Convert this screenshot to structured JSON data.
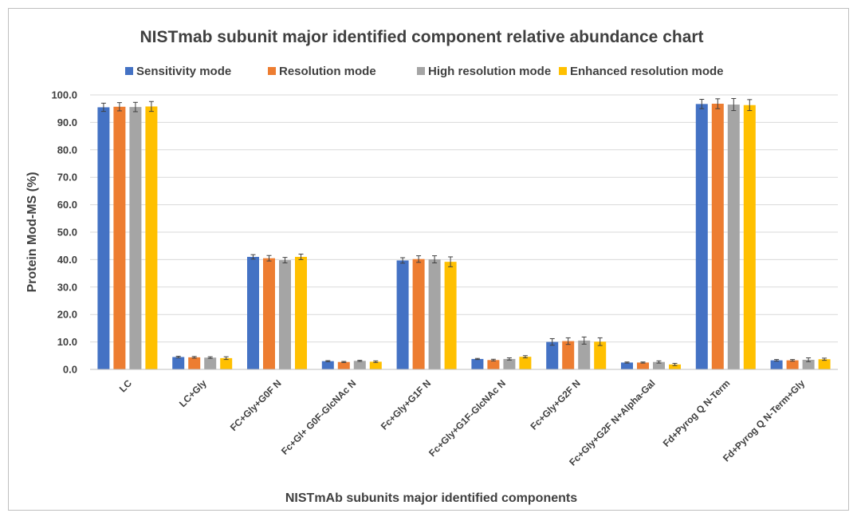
{
  "chart_data": {
    "type": "bar",
    "title": "NISTmab subunit major identified component relative abundance chart",
    "xlabel": "NISTmAb subunits major identified components",
    "ylabel": "Protein Mod-MS (%)",
    "ylim": [
      0,
      100
    ],
    "yticks": [
      "0.0",
      "10.0",
      "20.0",
      "30.0",
      "40.0",
      "50.0",
      "60.0",
      "70.0",
      "80.0",
      "90.0",
      "100.0"
    ],
    "grid": true,
    "legend_position": "top",
    "categories": [
      "LC",
      "LC+Gly",
      "FC+Gly+G0F N",
      "Fc+Gl+ G0F-GlcNAc N",
      "Fc+Gly+G1F N",
      "Fc+Gly+G1F-GlcNAc N",
      "Fc+Gly+G2F N",
      "Fc+Gly+G2F N+Alpha-Gal",
      "Fd+Pyrog Q N-Term",
      "Fd+Pyrog Q N-Term+Gly"
    ],
    "series": [
      {
        "name": "Sensitivity mode",
        "color": "#4472C4",
        "values": [
          95.5,
          4.5,
          41.0,
          3.0,
          39.7,
          3.8,
          10.0,
          2.5,
          96.7,
          3.3
        ],
        "errors": [
          1.5,
          0.3,
          0.8,
          0.2,
          1.0,
          0.2,
          1.2,
          0.2,
          1.7,
          0.3
        ]
      },
      {
        "name": "Resolution mode",
        "color": "#ED7D31",
        "values": [
          95.7,
          4.4,
          40.5,
          2.7,
          40.2,
          3.4,
          10.3,
          2.5,
          96.8,
          3.3
        ],
        "errors": [
          1.5,
          0.3,
          1.0,
          0.2,
          1.2,
          0.3,
          1.2,
          0.2,
          1.8,
          0.3
        ]
      },
      {
        "name": "High resolution mode",
        "color": "#A5A5A5",
        "values": [
          95.6,
          4.3,
          39.8,
          3.1,
          40.1,
          3.8,
          10.5,
          2.7,
          96.5,
          3.5
        ],
        "errors": [
          1.7,
          0.3,
          1.0,
          0.2,
          1.3,
          0.4,
          1.3,
          0.4,
          2.2,
          0.7
        ]
      },
      {
        "name": "Enhanced resolution mode",
        "color": "#FFC000",
        "values": [
          95.8,
          4.1,
          41.0,
          2.8,
          39.2,
          4.6,
          10.1,
          1.8,
          96.3,
          3.7
        ],
        "errors": [
          1.8,
          0.5,
          1.0,
          0.3,
          1.8,
          0.4,
          1.4,
          0.4,
          2.0,
          0.4
        ]
      }
    ]
  }
}
